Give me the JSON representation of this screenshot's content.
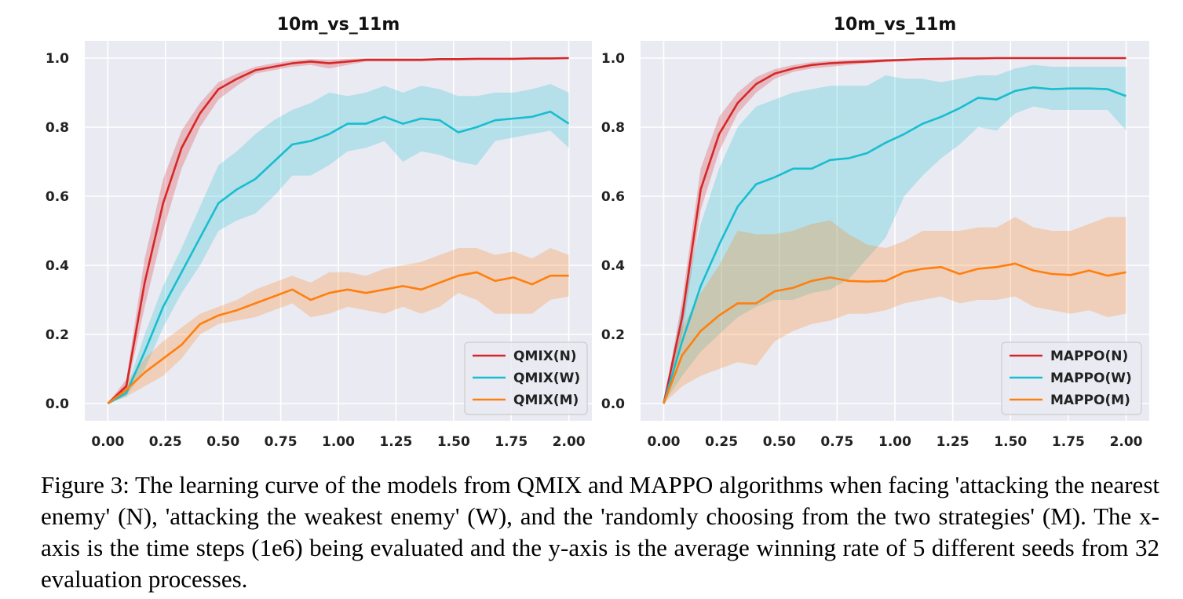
{
  "caption": "Figure 3: The learning curve of the models from QMIX and MAPPO algorithms when facing 'attacking the nearest enemy' (N), 'attacking the weakest enemy' (W), and the 'randomly choosing from the two strategies' (M). The x-axis is the time steps (1e6) being evaluated and the y-axis is the average winning rate of 5 different seeds from 32 evaluation processes.",
  "chart_data": [
    {
      "type": "line",
      "title": "10m_vs_11m",
      "xlabel": "",
      "ylabel": "",
      "xlim": [
        -0.1,
        2.1
      ],
      "ylim": [
        -0.05,
        1.05
      ],
      "xticks": [
        0.0,
        0.25,
        0.5,
        0.75,
        1.0,
        1.25,
        1.5,
        1.75,
        2.0
      ],
      "xtick_labels": [
        "0.00",
        "0.25",
        "0.50",
        "0.75",
        "1.00",
        "1.25",
        "1.50",
        "1.75",
        "2.00"
      ],
      "yticks": [
        0.0,
        0.2,
        0.4,
        0.6,
        0.8,
        1.0
      ],
      "ytick_labels": [
        "0.0",
        "0.2",
        "0.4",
        "0.6",
        "0.8",
        "1.0"
      ],
      "grid": true,
      "legend_position": "lower-right",
      "x": [
        0.0,
        0.08,
        0.16,
        0.24,
        0.32,
        0.4,
        0.48,
        0.56,
        0.64,
        0.72,
        0.8,
        0.88,
        0.96,
        1.04,
        1.12,
        1.2,
        1.28,
        1.36,
        1.44,
        1.52,
        1.6,
        1.68,
        1.76,
        1.84,
        1.92,
        2.0
      ],
      "series": [
        {
          "name": "QMIX(N)",
          "color": "#d62728",
          "values": [
            0.0,
            0.05,
            0.35,
            0.58,
            0.74,
            0.84,
            0.91,
            0.94,
            0.965,
            0.975,
            0.985,
            0.99,
            0.985,
            0.99,
            0.995,
            0.995,
            0.995,
            0.995,
            0.997,
            0.997,
            0.998,
            0.998,
            0.998,
            0.999,
            0.999,
            1.0
          ],
          "lower": [
            0.0,
            0.03,
            0.28,
            0.5,
            0.68,
            0.8,
            0.88,
            0.92,
            0.955,
            0.965,
            0.975,
            0.98,
            0.97,
            0.98,
            0.99,
            0.99,
            0.99,
            0.99,
            0.993,
            0.993,
            0.995,
            0.995,
            0.995,
            0.997,
            0.997,
            0.998
          ],
          "upper": [
            0.0,
            0.07,
            0.42,
            0.65,
            0.79,
            0.87,
            0.93,
            0.955,
            0.975,
            0.985,
            0.993,
            0.997,
            0.995,
            0.998,
            0.999,
            0.999,
            0.999,
            0.999,
            1.0,
            1.0,
            1.0,
            1.0,
            1.0,
            1.0,
            1.0,
            1.0
          ]
        },
        {
          "name": "QMIX(W)",
          "color": "#17becf",
          "values": [
            0.0,
            0.03,
            0.15,
            0.28,
            0.38,
            0.48,
            0.58,
            0.62,
            0.65,
            0.7,
            0.75,
            0.76,
            0.78,
            0.81,
            0.81,
            0.83,
            0.81,
            0.825,
            0.82,
            0.785,
            0.8,
            0.82,
            0.825,
            0.83,
            0.845,
            0.81
          ],
          "lower": [
            0.0,
            0.02,
            0.1,
            0.22,
            0.32,
            0.4,
            0.5,
            0.53,
            0.55,
            0.6,
            0.66,
            0.66,
            0.69,
            0.73,
            0.74,
            0.76,
            0.7,
            0.73,
            0.72,
            0.7,
            0.69,
            0.76,
            0.77,
            0.78,
            0.79,
            0.74
          ],
          "upper": [
            0.0,
            0.04,
            0.2,
            0.34,
            0.45,
            0.57,
            0.69,
            0.73,
            0.78,
            0.82,
            0.85,
            0.87,
            0.9,
            0.89,
            0.9,
            0.92,
            0.9,
            0.92,
            0.91,
            0.89,
            0.89,
            0.9,
            0.9,
            0.91,
            0.925,
            0.9
          ]
        },
        {
          "name": "QMIX(M)",
          "color": "#ff7f0e",
          "values": [
            0.0,
            0.04,
            0.09,
            0.13,
            0.17,
            0.23,
            0.255,
            0.27,
            0.29,
            0.31,
            0.33,
            0.3,
            0.32,
            0.33,
            0.32,
            0.33,
            0.34,
            0.33,
            0.35,
            0.37,
            0.38,
            0.355,
            0.365,
            0.345,
            0.37,
            0.37
          ],
          "lower": [
            0.0,
            0.02,
            0.05,
            0.08,
            0.13,
            0.2,
            0.23,
            0.24,
            0.25,
            0.27,
            0.29,
            0.25,
            0.26,
            0.28,
            0.27,
            0.26,
            0.28,
            0.26,
            0.28,
            0.32,
            0.3,
            0.26,
            0.26,
            0.26,
            0.3,
            0.31
          ],
          "upper": [
            0.0,
            0.06,
            0.13,
            0.18,
            0.22,
            0.26,
            0.28,
            0.3,
            0.33,
            0.35,
            0.37,
            0.35,
            0.38,
            0.38,
            0.37,
            0.39,
            0.4,
            0.41,
            0.43,
            0.45,
            0.45,
            0.43,
            0.44,
            0.42,
            0.45,
            0.43
          ]
        }
      ]
    },
    {
      "type": "line",
      "title": "10m_vs_11m",
      "xlabel": "",
      "ylabel": "",
      "xlim": [
        -0.1,
        2.1
      ],
      "ylim": [
        -0.05,
        1.05
      ],
      "xticks": [
        0.0,
        0.25,
        0.5,
        0.75,
        1.0,
        1.25,
        1.5,
        1.75,
        2.0
      ],
      "xtick_labels": [
        "0.00",
        "0.25",
        "0.50",
        "0.75",
        "1.00",
        "1.25",
        "1.50",
        "1.75",
        "2.00"
      ],
      "yticks": [
        0.0,
        0.2,
        0.4,
        0.6,
        0.8,
        1.0
      ],
      "ytick_labels": [
        "0.0",
        "0.2",
        "0.4",
        "0.6",
        "0.8",
        "1.0"
      ],
      "grid": true,
      "legend_position": "lower-right",
      "x": [
        0.0,
        0.08,
        0.16,
        0.24,
        0.32,
        0.4,
        0.48,
        0.56,
        0.64,
        0.72,
        0.8,
        0.88,
        0.96,
        1.04,
        1.12,
        1.2,
        1.28,
        1.36,
        1.44,
        1.52,
        1.6,
        1.68,
        1.76,
        1.84,
        1.92,
        2.0
      ],
      "series": [
        {
          "name": "MAPPO(N)",
          "color": "#d62728",
          "values": [
            0.0,
            0.25,
            0.62,
            0.78,
            0.87,
            0.925,
            0.955,
            0.97,
            0.98,
            0.985,
            0.988,
            0.99,
            0.993,
            0.995,
            0.997,
            0.998,
            0.999,
            0.999,
            1.0,
            1.0,
            1.0,
            1.0,
            1.0,
            1.0,
            1.0,
            1.0
          ],
          "lower": [
            0.0,
            0.2,
            0.56,
            0.73,
            0.84,
            0.9,
            0.94,
            0.96,
            0.97,
            0.975,
            0.98,
            0.985,
            0.988,
            0.99,
            0.994,
            0.996,
            0.998,
            0.998,
            0.999,
            0.999,
            0.999,
            0.999,
            0.999,
            0.999,
            0.999,
            0.999
          ],
          "upper": [
            0.0,
            0.3,
            0.68,
            0.83,
            0.9,
            0.945,
            0.968,
            0.98,
            0.988,
            0.992,
            0.994,
            0.996,
            0.997,
            0.998,
            0.999,
            1.0,
            1.0,
            1.0,
            1.0,
            1.0,
            1.0,
            1.0,
            1.0,
            1.0,
            1.0,
            1.0
          ]
        },
        {
          "name": "MAPPO(W)",
          "color": "#17becf",
          "values": [
            0.0,
            0.18,
            0.34,
            0.46,
            0.57,
            0.635,
            0.655,
            0.68,
            0.68,
            0.705,
            0.71,
            0.725,
            0.755,
            0.78,
            0.81,
            0.83,
            0.855,
            0.885,
            0.88,
            0.905,
            0.915,
            0.91,
            0.912,
            0.912,
            0.91,
            0.89
          ],
          "lower": [
            0.0,
            0.08,
            0.15,
            0.2,
            0.25,
            0.28,
            0.3,
            0.3,
            0.32,
            0.33,
            0.36,
            0.42,
            0.48,
            0.6,
            0.66,
            0.71,
            0.75,
            0.8,
            0.79,
            0.84,
            0.86,
            0.85,
            0.85,
            0.85,
            0.85,
            0.79
          ],
          "upper": [
            0.0,
            0.28,
            0.52,
            0.68,
            0.8,
            0.86,
            0.88,
            0.9,
            0.91,
            0.92,
            0.92,
            0.92,
            0.95,
            0.94,
            0.94,
            0.93,
            0.94,
            0.95,
            0.95,
            0.97,
            0.98,
            0.975,
            0.975,
            0.975,
            0.975,
            0.975
          ]
        },
        {
          "name": "MAPPO(M)",
          "color": "#ff7f0e",
          "values": [
            0.0,
            0.14,
            0.21,
            0.255,
            0.29,
            0.29,
            0.325,
            0.335,
            0.355,
            0.365,
            0.355,
            0.353,
            0.355,
            0.38,
            0.39,
            0.395,
            0.375,
            0.39,
            0.395,
            0.405,
            0.385,
            0.375,
            0.372,
            0.385,
            0.37,
            0.38
          ],
          "lower": [
            0.0,
            0.05,
            0.08,
            0.1,
            0.12,
            0.11,
            0.18,
            0.21,
            0.23,
            0.24,
            0.26,
            0.26,
            0.27,
            0.29,
            0.3,
            0.31,
            0.29,
            0.3,
            0.3,
            0.31,
            0.28,
            0.27,
            0.26,
            0.27,
            0.25,
            0.26
          ],
          "upper": [
            0.0,
            0.22,
            0.32,
            0.4,
            0.5,
            0.49,
            0.49,
            0.5,
            0.52,
            0.53,
            0.49,
            0.46,
            0.45,
            0.47,
            0.5,
            0.5,
            0.5,
            0.51,
            0.51,
            0.54,
            0.51,
            0.5,
            0.5,
            0.52,
            0.54,
            0.54
          ]
        }
      ]
    }
  ]
}
